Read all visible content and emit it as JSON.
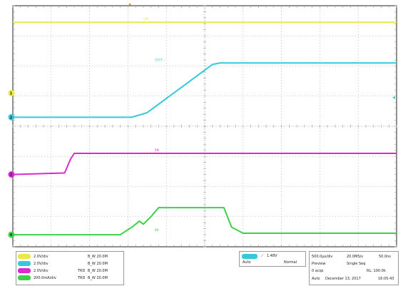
{
  "colors": {
    "ch1": "#e8e84a",
    "ch2": "#35c8d8",
    "ch3": "#d82ad0",
    "ch4": "#3fd04a",
    "grid": "#9a9a9a",
    "frame": "#222222",
    "trigger": "#e07a00"
  },
  "channels": [
    {
      "id": "1",
      "scale": "2.0V/div",
      "bw": "B_W 20.0M",
      "bw_prefix": ""
    },
    {
      "id": "2",
      "scale": "2.0V/div",
      "bw": "B_W 20.0M",
      "bw_prefix": ""
    },
    {
      "id": "3",
      "scale": "2.0V/div",
      "bw": "B_W 20.0M",
      "bw_prefix": "TRD"
    },
    {
      "id": "4",
      "scale": "200.0mA/div",
      "bw": "B_W 20.0M",
      "bw_prefix": "TRD"
    }
  ],
  "trace_labels": {
    "ch1": "VIN",
    "ch2": "VOUT",
    "ch3": "EN",
    "ch4": "IIN"
  },
  "trigger": {
    "channel": "2",
    "level": "1.48V",
    "mode_label": "Auto",
    "mode_value": "Normal"
  },
  "acquisition": {
    "timebase": "500.0µs/div",
    "sample_rate": "20.0MS/s",
    "record": "50.0ns",
    "preview": "Preview",
    "single_seq": "Single Seq",
    "acqs": "0 acqs",
    "rl": "RL: 100.0k",
    "run_mode": "Auto",
    "date": "December 13, 2017",
    "time": "16:05:43"
  },
  "chart_data": {
    "type": "line",
    "x_divisions": 10,
    "y_divisions": 8,
    "x_unit": "div",
    "series": [
      {
        "name": "VIN",
        "channel": 1,
        "points": [
          [
            0,
            7.45
          ],
          [
            10,
            7.45
          ]
        ]
      },
      {
        "name": "VOUT",
        "channel": 2,
        "points": [
          [
            0,
            4.3
          ],
          [
            3.1,
            4.3
          ],
          [
            3.5,
            4.45
          ],
          [
            5.2,
            6.05
          ],
          [
            5.4,
            6.1
          ],
          [
            10,
            6.1
          ]
        ]
      },
      {
        "name": "EN",
        "channel": 3,
        "points": [
          [
            0,
            2.4
          ],
          [
            1.35,
            2.45
          ],
          [
            1.5,
            2.9
          ],
          [
            1.6,
            3.1
          ],
          [
            10,
            3.1
          ]
        ]
      },
      {
        "name": "IIN",
        "channel": 4,
        "points": [
          [
            0,
            0.4
          ],
          [
            2.8,
            0.4
          ],
          [
            3.1,
            0.65
          ],
          [
            3.3,
            0.85
          ],
          [
            3.4,
            0.75
          ],
          [
            3.6,
            1.0
          ],
          [
            3.8,
            1.3
          ],
          [
            5.5,
            1.3
          ],
          [
            5.7,
            0.65
          ],
          [
            6.0,
            0.45
          ],
          [
            10,
            0.45
          ]
        ]
      }
    ]
  }
}
